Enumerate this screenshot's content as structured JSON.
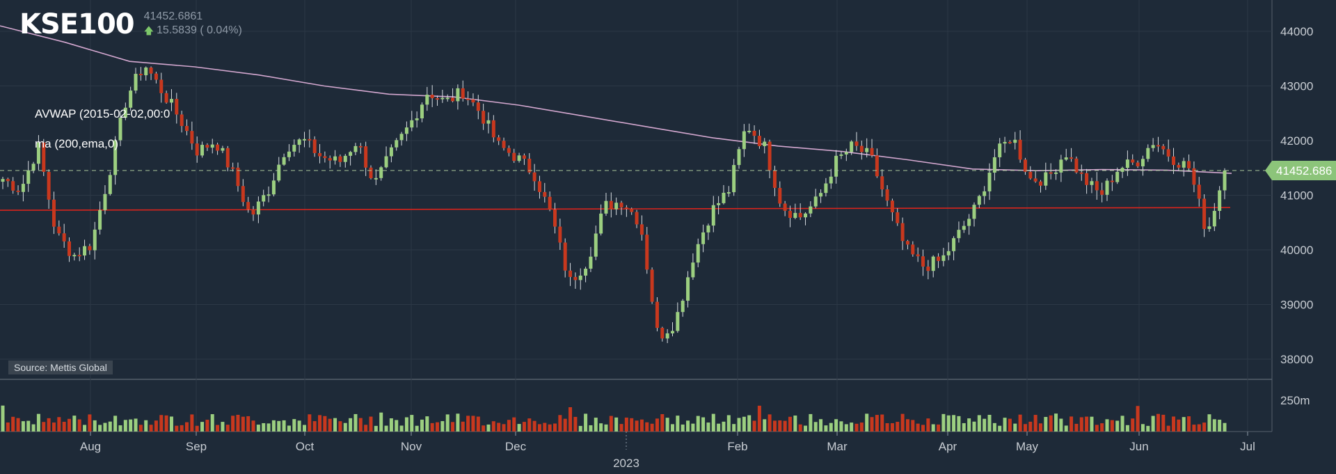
{
  "header": {
    "title": "KSE100",
    "last_value": "41452.6861",
    "change": "15.5839 ( 0.04%)"
  },
  "indicators": {
    "avwap": "AVWAP (2015-02-02,00:0",
    "ma": "ma (200,ema,0)"
  },
  "source": "Source: Mettis Global",
  "price_tag": "41452.686",
  "colors": {
    "background": "#1e2a38",
    "up": "#9ccf80",
    "down": "#c8381e",
    "ma": "#d4a8d0",
    "avwap": "#d9241c",
    "grid": "#2c3846"
  },
  "chart_data": {
    "type": "candlestick",
    "title": "KSE100",
    "y_ticks": [
      "44000",
      "43000",
      "42000",
      "41000",
      "40000",
      "39000",
      "38000"
    ],
    "ylim": [
      37600,
      44500
    ],
    "x_tick_labels": [
      "Aug",
      "Sep",
      "Oct",
      "Nov",
      "Dec",
      "Feb",
      "Mar",
      "Apr",
      "May",
      "Jun",
      "Jul"
    ],
    "year_label": "2023",
    "volume_axis_label": "250m",
    "last_price": 41452.6861,
    "close_series": [
      41300,
      41100,
      41900,
      40300,
      39900,
      40100,
      41400,
      42800,
      43400,
      42900,
      42400,
      41800,
      42000,
      41400,
      40600,
      41100,
      41900,
      42000,
      41700,
      41600,
      42000,
      41200,
      41800,
      42300,
      42900,
      42700,
      42900,
      42500,
      41900,
      41700,
      41400,
      40600,
      39400,
      39800,
      40800,
      40900,
      40500,
      38400,
      38700,
      39900,
      40700,
      41100,
      42300,
      41900,
      40800,
      40600,
      40900,
      41600,
      41900,
      41700,
      40800,
      40000,
      39700,
      39800,
      40300,
      40800,
      41700,
      42100,
      41300,
      41300,
      41800,
      41300,
      41000,
      41500,
      41600,
      42000,
      41700,
      41500,
      40300,
      41450
    ],
    "ma_series": [
      44100,
      43800,
      43450,
      43350,
      43200,
      43000,
      42850,
      42800,
      42650,
      42450,
      42250,
      42050,
      41900,
      41800,
      41650,
      41480,
      41450,
      41470,
      41460,
      41400
    ],
    "avwap_level": 40750
  }
}
